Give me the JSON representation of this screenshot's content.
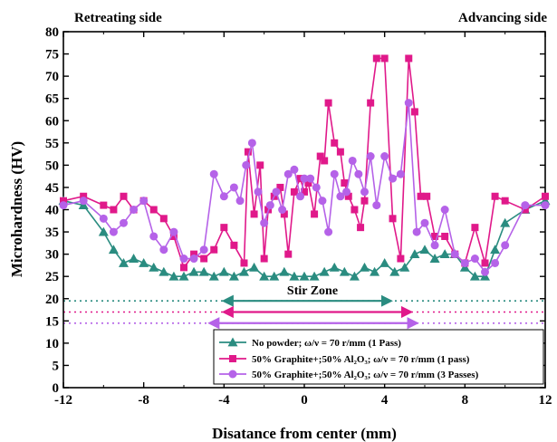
{
  "colors": {
    "teal": "#2a8c80",
    "magenta": "#e0198a",
    "purple": "#b562e8"
  },
  "chart_data": {
    "type": "line",
    "xlabel": "Disatance from center (mm)",
    "ylabel": "Microhardness (HV)",
    "xlim": [
      -12,
      12
    ],
    "ylim": [
      0,
      80
    ],
    "x_ticks": [
      "-12",
      "-8",
      "-4",
      "0",
      "4",
      "8",
      "12"
    ],
    "y_ticks": [
      "0",
      "5",
      "10",
      "15",
      "20",
      "25",
      "30",
      "35",
      "40",
      "45",
      "50",
      "55",
      "60",
      "65",
      "70",
      "75",
      "80"
    ],
    "x_tick_values": [
      -12,
      -8,
      -4,
      0,
      4,
      8,
      12
    ],
    "y_tick_values": [
      0,
      5,
      10,
      15,
      20,
      25,
      30,
      35,
      40,
      45,
      50,
      55,
      60,
      65,
      70,
      75,
      80
    ],
    "corner_labels": {
      "left": "Retreating side",
      "right": "Advancing side"
    },
    "stir_zone": {
      "label": "Stir Zone",
      "ranges": [
        {
          "series": "teal",
          "from": -4,
          "to": 4.3,
          "level": 19.5
        },
        {
          "series": "magenta",
          "from": -4,
          "to": 5.3,
          "level": 17
        },
        {
          "series": "purple",
          "from": -4.7,
          "to": 5.6,
          "level": 14.5
        }
      ]
    },
    "series": [
      {
        "name": "No powder; ω/ν = 70 r/mm (1 Pass)",
        "color_key": "teal",
        "marker": "triangle",
        "x": [
          -12,
          -11,
          -10,
          -9.5,
          -9,
          -8.5,
          -8,
          -7.5,
          -7,
          -6.5,
          -6,
          -5.5,
          -5,
          -4.5,
          -4,
          -3.5,
          -3,
          -2.5,
          -2,
          -1.5,
          -1,
          -0.5,
          0,
          0.5,
          1,
          1.5,
          2,
          2.5,
          3,
          3.5,
          4,
          4.5,
          5,
          5.5,
          6,
          6.5,
          7,
          7.5,
          8,
          8.5,
          9,
          9.5,
          10,
          11,
          12
        ],
        "y": [
          42,
          41,
          35,
          31,
          28,
          29,
          28,
          27,
          26,
          25,
          25,
          26,
          26,
          25,
          26,
          25,
          26,
          27,
          25,
          25,
          26,
          25,
          25,
          25,
          26,
          27,
          26,
          25,
          27,
          26,
          28,
          26,
          27,
          30,
          31,
          29,
          30,
          30,
          27,
          25,
          25,
          31,
          37,
          40,
          42
        ]
      },
      {
        "name": "50% Graphite+;50% Al₂O₃; ω/ν = 70 r/mm (1 pass)",
        "color_key": "magenta",
        "marker": "square",
        "x": [
          -12,
          -11,
          -10,
          -9.5,
          -9,
          -8.5,
          -8,
          -7.5,
          -7,
          -6.5,
          -6,
          -5.5,
          -5,
          -4.5,
          -4,
          -3.5,
          -3,
          -2.8,
          -2.5,
          -2.2,
          -2,
          -1.8,
          -1.5,
          -1.2,
          -1,
          -0.8,
          -0.5,
          -0.2,
          0,
          0.2,
          0.5,
          0.8,
          1,
          1.2,
          1.5,
          1.8,
          2,
          2.2,
          2.5,
          2.8,
          3,
          3.3,
          3.6,
          4,
          4.4,
          4.8,
          5.2,
          5.5,
          5.8,
          6.1,
          6.5,
          7,
          7.5,
          8,
          8.5,
          9,
          9.5,
          10,
          11,
          12
        ],
        "y": [
          42,
          43,
          41,
          40,
          43,
          40,
          42,
          40,
          38,
          34,
          27,
          30,
          29,
          31,
          36,
          32,
          28,
          53,
          39,
          50,
          29,
          40,
          43,
          45,
          39,
          30,
          44,
          47,
          44,
          46,
          39,
          52,
          51,
          64,
          55,
          53,
          46,
          43,
          40,
          36,
          42,
          64,
          74,
          74,
          38,
          29,
          74,
          62,
          43,
          43,
          34,
          34,
          30,
          28,
          36,
          28,
          43,
          42,
          40,
          43
        ]
      },
      {
        "name": "50% Graphite+;50% Al₂O₃; ω/ν = 70 r/mm (3 Passes)",
        "color_key": "purple",
        "marker": "circle",
        "x": [
          -12,
          -11,
          -10,
          -9.5,
          -9,
          -8.5,
          -8,
          -7.5,
          -7,
          -6.5,
          -6,
          -5.5,
          -5,
          -4.5,
          -4,
          -3.5,
          -3.2,
          -2.9,
          -2.6,
          -2.3,
          -2,
          -1.7,
          -1.4,
          -1.1,
          -0.8,
          -0.5,
          -0.2,
          0,
          0.3,
          0.6,
          0.9,
          1.2,
          1.5,
          1.8,
          2.1,
          2.4,
          2.7,
          3,
          3.3,
          3.6,
          4,
          4.4,
          4.8,
          5.2,
          5.6,
          6,
          6.5,
          7,
          7.5,
          8,
          8.5,
          9,
          9.5,
          10,
          11,
          12
        ],
        "y": [
          41,
          42,
          38,
          35,
          37,
          40,
          42,
          34,
          31,
          35,
          29,
          29,
          31,
          48,
          43,
          45,
          42,
          50,
          55,
          44,
          37,
          41,
          44,
          40,
          48,
          49,
          43,
          47,
          47,
          45,
          42,
          35,
          48,
          43,
          44,
          51,
          48,
          44,
          52,
          41,
          52,
          47,
          48,
          64,
          35,
          37,
          32,
          40,
          30,
          28,
          29,
          26,
          28,
          32,
          41,
          41
        ]
      }
    ],
    "legend_position": "bottom-right"
  }
}
